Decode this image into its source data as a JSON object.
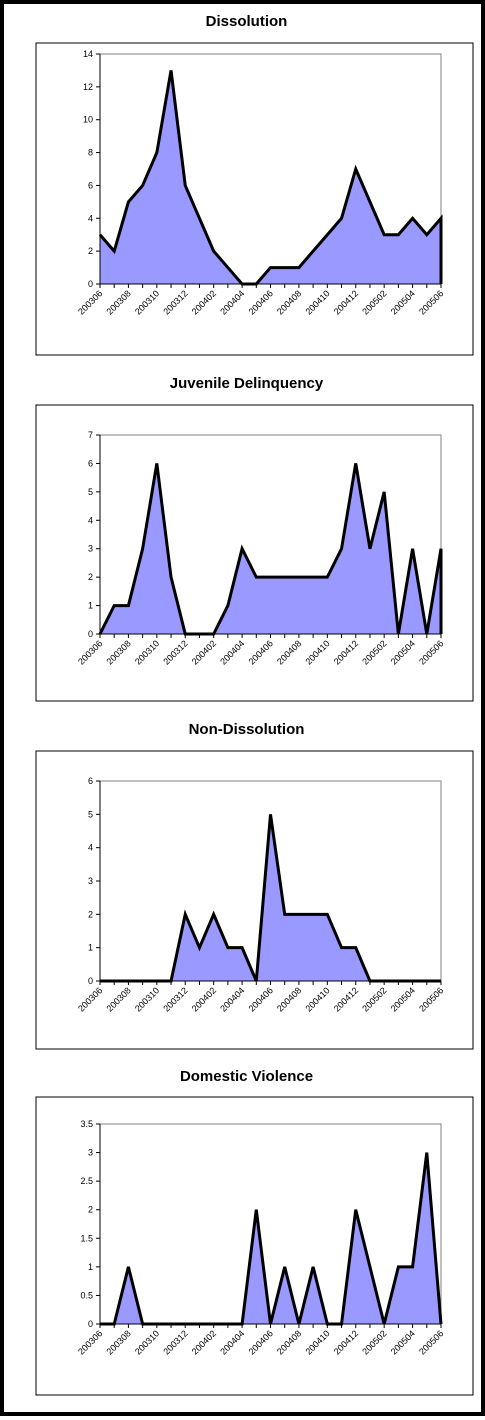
{
  "chart_data": [
    {
      "type": "area",
      "title": "Dissolution",
      "x": [
        "200306",
        "200307",
        "200308",
        "200309",
        "200310",
        "200311",
        "200312",
        "200401",
        "200402",
        "200403",
        "200404",
        "200405",
        "200406",
        "200407",
        "200408",
        "200409",
        "200410",
        "200411",
        "200412",
        "200501",
        "200502",
        "200503",
        "200504",
        "200505",
        "200506"
      ],
      "x_tick_labels": [
        "200306",
        "200308",
        "200310",
        "200312",
        "200402",
        "200404",
        "200406",
        "200408",
        "200410",
        "200412",
        "200502",
        "200504",
        "200506"
      ],
      "values": [
        3,
        2,
        5,
        6,
        8,
        13,
        6,
        4,
        2,
        1,
        0,
        0,
        1,
        1,
        1,
        2,
        3,
        4,
        7,
        5,
        3,
        3,
        4,
        3,
        4
      ],
      "ylim": [
        0,
        14
      ],
      "y_ticks": [
        0,
        2,
        4,
        6,
        8,
        10,
        12,
        14
      ],
      "colors": {
        "fill": "#9999ff",
        "line": "#000000"
      },
      "xlabel": "",
      "ylabel": "",
      "grid": false,
      "legend": "none"
    },
    {
      "type": "area",
      "title": "Juvenile Delinquency",
      "x": [
        "200306",
        "200307",
        "200308",
        "200309",
        "200310",
        "200311",
        "200312",
        "200401",
        "200402",
        "200403",
        "200404",
        "200405",
        "200406",
        "200407",
        "200408",
        "200409",
        "200410",
        "200411",
        "200412",
        "200501",
        "200502",
        "200503",
        "200504",
        "200505",
        "200506"
      ],
      "x_tick_labels": [
        "200306",
        "200308",
        "200310",
        "200312",
        "200402",
        "200404",
        "200406",
        "200408",
        "200410",
        "200412",
        "200502",
        "200504",
        "200506"
      ],
      "values": [
        0,
        1,
        1,
        3,
        6,
        2,
        0,
        0,
        0,
        1,
        3,
        2,
        2,
        2,
        2,
        2,
        2,
        3,
        6,
        3,
        5,
        0,
        3,
        0,
        3
      ],
      "ylim": [
        0,
        7
      ],
      "y_ticks": [
        0,
        1,
        2,
        3,
        4,
        5,
        6,
        7
      ],
      "colors": {
        "fill": "#9999ff",
        "line": "#000000"
      },
      "xlabel": "",
      "ylabel": "",
      "grid": false,
      "legend": "none"
    },
    {
      "type": "area",
      "title": "Non-Dissolution",
      "x": [
        "200306",
        "200307",
        "200308",
        "200309",
        "200310",
        "200311",
        "200312",
        "200401",
        "200402",
        "200403",
        "200404",
        "200405",
        "200406",
        "200407",
        "200408",
        "200409",
        "200410",
        "200411",
        "200412",
        "200501",
        "200502",
        "200503",
        "200504",
        "200505",
        "200506"
      ],
      "x_tick_labels": [
        "200306",
        "200308",
        "200310",
        "200312",
        "200402",
        "200404",
        "200406",
        "200408",
        "200410",
        "200412",
        "200502",
        "200504",
        "200506"
      ],
      "values": [
        0,
        0,
        0,
        0,
        0,
        0,
        2,
        1,
        2,
        1,
        1,
        0,
        5,
        2,
        2,
        2,
        2,
        1,
        1,
        0,
        0,
        0,
        0,
        0,
        0
      ],
      "ylim": [
        0,
        6
      ],
      "y_ticks": [
        0,
        1,
        2,
        3,
        4,
        5,
        6
      ],
      "colors": {
        "fill": "#9999ff",
        "line": "#000000"
      },
      "xlabel": "",
      "ylabel": "",
      "grid": false,
      "legend": "none"
    },
    {
      "type": "area",
      "title": "Domestic Violence",
      "x": [
        "200306",
        "200307",
        "200308",
        "200309",
        "200310",
        "200311",
        "200312",
        "200401",
        "200402",
        "200403",
        "200404",
        "200405",
        "200406",
        "200407",
        "200408",
        "200409",
        "200410",
        "200411",
        "200412",
        "200501",
        "200502",
        "200503",
        "200504",
        "200505",
        "200506"
      ],
      "x_tick_labels": [
        "200306",
        "200308",
        "200310",
        "200312",
        "200402",
        "200404",
        "200406",
        "200408",
        "200410",
        "200412",
        "200502",
        "200504",
        "200506"
      ],
      "values": [
        0,
        0,
        1,
        0,
        0,
        0,
        0,
        0,
        0,
        0,
        0,
        2,
        0,
        1,
        0,
        1,
        0,
        0,
        2,
        1,
        0,
        1,
        1,
        3,
        0
      ],
      "ylim": [
        0,
        3.5
      ],
      "y_ticks": [
        0,
        0.5,
        1,
        1.5,
        2,
        2.5,
        3,
        3.5
      ],
      "y_tick_labels": [
        "0",
        "0.5",
        "1",
        "1.5",
        "2",
        "2.5",
        "3",
        "3.5"
      ],
      "colors": {
        "fill": "#9999ff",
        "line": "#000000"
      },
      "xlabel": "",
      "ylabel": "",
      "grid": false,
      "legend": "none"
    }
  ]
}
